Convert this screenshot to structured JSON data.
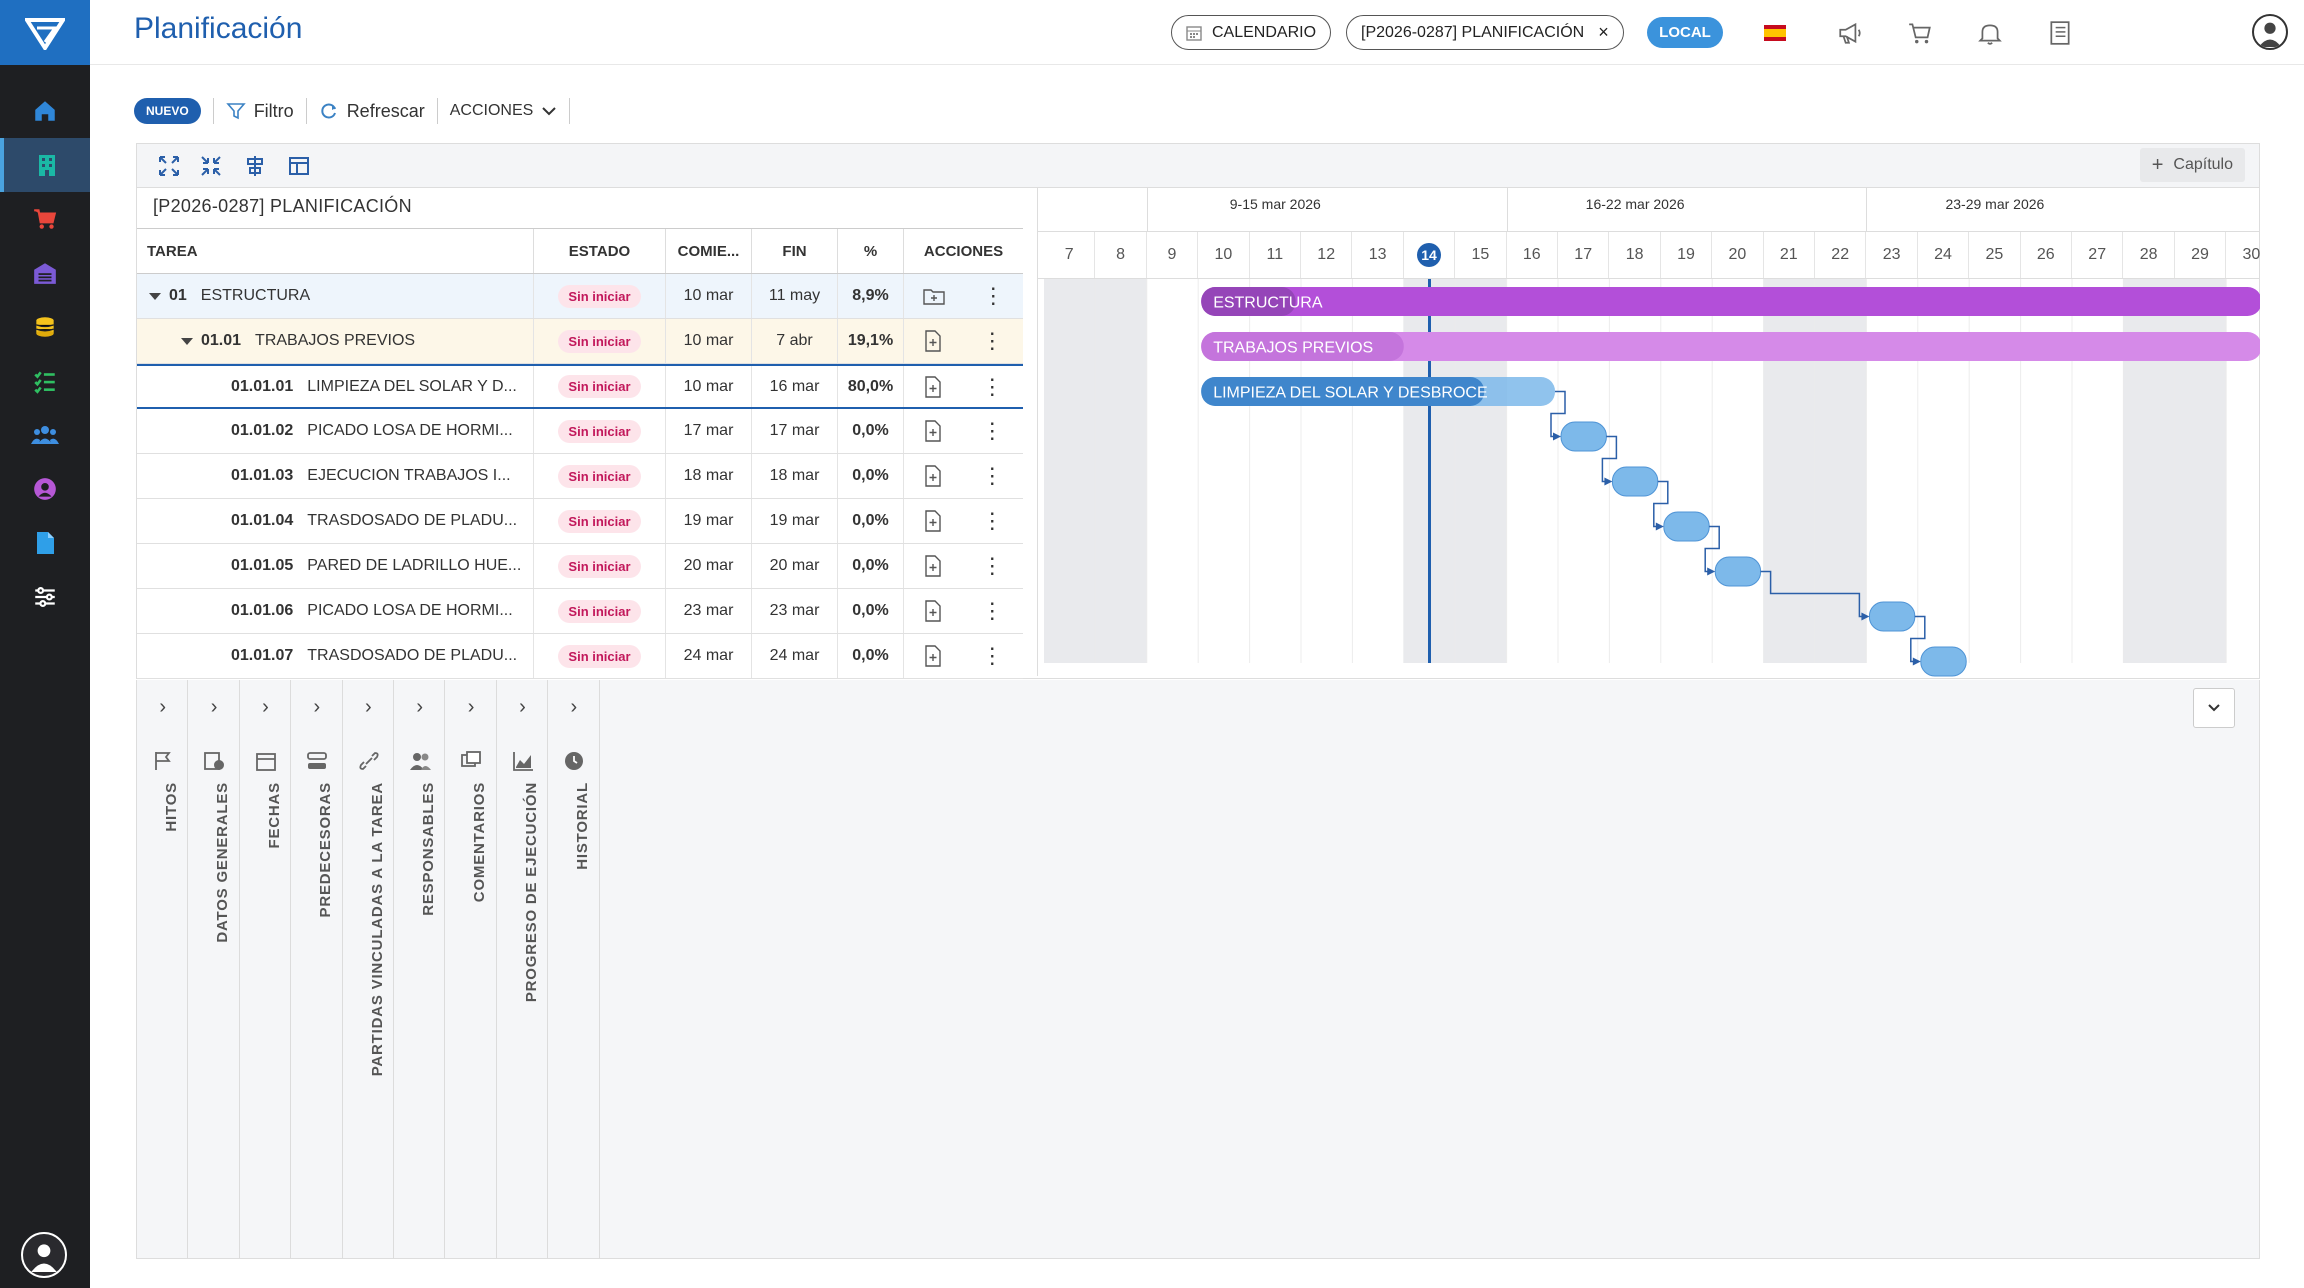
{
  "app": {
    "title": "Planificación"
  },
  "header": {
    "calendar_chip": "CALENDARIO",
    "project_chip": "[P2026-0287] PLANIFICACIÓN",
    "project_chip_close": "×",
    "local_badge": "LOCAL",
    "flag_icon": "spain-flag-icon"
  },
  "sidebar": {
    "items": [
      {
        "icon": "home-icon"
      },
      {
        "icon": "building-icon",
        "active": true
      },
      {
        "icon": "cart-icon"
      },
      {
        "icon": "warehouse-icon"
      },
      {
        "icon": "coins-icon"
      },
      {
        "icon": "checklist-icon"
      },
      {
        "icon": "users-icon"
      },
      {
        "icon": "user-circle-icon"
      },
      {
        "icon": "document-icon"
      },
      {
        "icon": "sliders-icon"
      }
    ]
  },
  "toolbar": {
    "nuevo": "NUEVO",
    "filtro": "Filtro",
    "refrescar": "Refrescar",
    "acciones": "ACCIONES"
  },
  "panel": {
    "capitulo": "Capítulo",
    "project_title": "[P2026-0287] PLANIFICACIÓN"
  },
  "grid": {
    "headers": {
      "tarea": "TAREA",
      "estado": "ESTADO",
      "comienzo": "COMIE...",
      "fin": "FIN",
      "pct": "%",
      "acciones": "ACCIONES"
    },
    "rows": [
      {
        "code": "01",
        "name": "ESTRUCTURA",
        "estado": "Sin iniciar",
        "start": "10 mar",
        "end": "11 may",
        "pct": "8,9%"
      },
      {
        "code": "01.01",
        "name": "TRABAJOS PREVIOS",
        "estado": "Sin iniciar",
        "start": "10 mar",
        "end": "7 abr",
        "pct": "19,1%"
      },
      {
        "code": "01.01.01",
        "name": "LIMPIEZA DEL SOLAR Y D...",
        "estado": "Sin iniciar",
        "start": "10 mar",
        "end": "16 mar",
        "pct": "80,0%"
      },
      {
        "code": "01.01.02",
        "name": "PICADO LOSA DE HORMI...",
        "estado": "Sin iniciar",
        "start": "17 mar",
        "end": "17 mar",
        "pct": "0,0%"
      },
      {
        "code": "01.01.03",
        "name": "EJECUCION TRABAJOS I...",
        "estado": "Sin iniciar",
        "start": "18 mar",
        "end": "18 mar",
        "pct": "0,0%"
      },
      {
        "code": "01.01.04",
        "name": "TRASDOSADO DE PLADU...",
        "estado": "Sin iniciar",
        "start": "19 mar",
        "end": "19 mar",
        "pct": "0,0%"
      },
      {
        "code": "01.01.05",
        "name": "PARED DE LADRILLO HUE...",
        "estado": "Sin iniciar",
        "start": "20 mar",
        "end": "20 mar",
        "pct": "0,0%"
      },
      {
        "code": "01.01.06",
        "name": "PICADO LOSA DE HORMI...",
        "estado": "Sin iniciar",
        "start": "23 mar",
        "end": "23 mar",
        "pct": "0,0%"
      },
      {
        "code": "01.01.07",
        "name": "TRASDOSADO DE PLADU...",
        "estado": "Sin iniciar",
        "start": "24 mar",
        "end": "24 mar",
        "pct": "0,0%"
      }
    ]
  },
  "gantt": {
    "weeks": [
      "9-15 mar 2026",
      "16-22 mar 2026",
      "23-29 mar 2026"
    ],
    "days": [
      "7",
      "8",
      "9",
      "10",
      "11",
      "12",
      "13",
      "14",
      "15",
      "16",
      "17",
      "18",
      "19",
      "20",
      "21",
      "22",
      "23",
      "24",
      "25",
      "26",
      "27",
      "28",
      "29",
      "30"
    ],
    "today": "14",
    "bars": [
      {
        "label": "ESTRUCTURA",
        "color": "#b34fd9",
        "progress": 0.089
      },
      {
        "label": "TRABAJOS PREVIOS",
        "color": "#d58ae8",
        "progress": 0.191
      },
      {
        "label": "LIMPIEZA DEL SOLAR Y DESBROCE",
        "color": "#7db9ea",
        "progress": 0.8
      },
      {
        "label": ""
      },
      {
        "label": ""
      },
      {
        "label": ""
      },
      {
        "label": ""
      },
      {
        "label": ""
      },
      {
        "label": ""
      }
    ]
  },
  "bottom_tabs": [
    {
      "label": "HITOS",
      "icon": "flag-icon"
    },
    {
      "label": "DATOS GENERALES",
      "icon": "info-card-icon"
    },
    {
      "label": "FECHAS",
      "icon": "calendar-icon"
    },
    {
      "label": "PREDECESORAS",
      "icon": "predecessors-icon"
    },
    {
      "label": "PARTIDAS VINCULADAS A LA TAREA",
      "icon": "link-icon"
    },
    {
      "label": "RESPONSABLES",
      "icon": "users-icon"
    },
    {
      "label": "COMENTARIOS",
      "icon": "comments-icon"
    },
    {
      "label": "PROGRESO DE EJECUCIÓN",
      "icon": "chart-icon"
    },
    {
      "label": "HISTORIAL",
      "icon": "history-icon"
    }
  ]
}
